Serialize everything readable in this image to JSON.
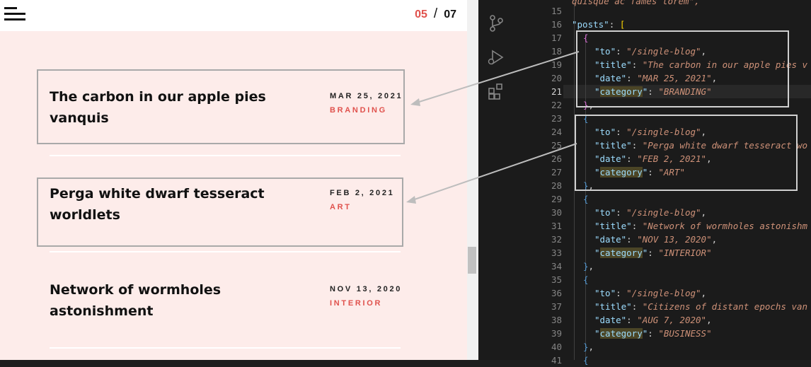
{
  "site": {
    "counter": {
      "current": "05",
      "separator": "/",
      "total": "07"
    },
    "posts": [
      {
        "title": "The carbon in our apple pies vanquis",
        "date": "MAR 25, 2021",
        "category": "BRANDING"
      },
      {
        "title": "Perga white dwarf tesseract worldlets",
        "date": "FEB 2, 2021",
        "category": "ART"
      },
      {
        "title": "Network of wormholes astonishment",
        "date": "NOV 13, 2020",
        "category": "INTERIOR"
      }
    ]
  },
  "editor": {
    "top_partial": "quisque ac fames lorem\",",
    "line_numbers": [
      "15",
      "16",
      "17",
      "18",
      "19",
      "20",
      "21",
      "22",
      "23",
      "24",
      "25",
      "26",
      "27",
      "28",
      "29",
      "30",
      "31",
      "32",
      "33",
      "34",
      "35",
      "36",
      "37",
      "38",
      "39",
      "40",
      "41"
    ],
    "active_line": "21",
    "posts_key": "posts",
    "entries": [
      {
        "to": "/single-blog",
        "title": "The carbon in our apple pies v",
        "date": "MAR 25, 2021",
        "category": "BRANDING"
      },
      {
        "to": "/single-blog",
        "title": "Perga white dwarf tesseract wo",
        "date": "FEB 2, 2021",
        "category": "ART"
      },
      {
        "to": "/single-blog",
        "title": "Network of wormholes astonishm",
        "date": "NOV 13, 2020",
        "category": "INTERIOR"
      },
      {
        "to": "/single-blog",
        "title": "Citizens of distant epochs van",
        "date": "AUG 7, 2020",
        "category": "BUSINESS"
      }
    ]
  },
  "colors": {
    "accent": "#e0524d",
    "site_bg": "#fdecea",
    "editor_bg": "#1b1b1b"
  }
}
